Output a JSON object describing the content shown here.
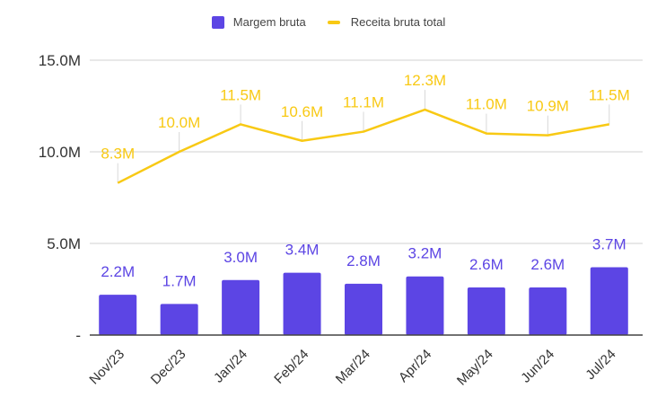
{
  "chart_data": {
    "type": "bar+line",
    "title": "",
    "xlabel": "",
    "ylabel": "",
    "categories": [
      "Nov/23",
      "Dec/23",
      "Jan/24",
      "Feb/24",
      "Mar/24",
      "Apr/24",
      "May/24",
      "Jun/24",
      "Jul/24"
    ],
    "series": [
      {
        "name": "Margem bruta",
        "type": "bar",
        "color": "#5c45e4",
        "values": [
          2.2,
          1.7,
          3.0,
          3.4,
          2.8,
          3.2,
          2.6,
          2.6,
          3.7
        ],
        "labels": [
          "2.2M",
          "1.7M",
          "3.0M",
          "3.4M",
          "2.8M",
          "3.2M",
          "2.6M",
          "2.6M",
          "3.7M"
        ]
      },
      {
        "name": "Receita bruta total",
        "type": "line",
        "color": "#f8c914",
        "values": [
          8.3,
          10.0,
          11.5,
          10.6,
          11.1,
          12.3,
          11.0,
          10.9,
          11.5
        ],
        "labels": [
          "8.3M",
          "10.0M",
          "11.5M",
          "10.6M",
          "11.1M",
          "12.3M",
          "11.0M",
          "10.9M",
          "11.5M"
        ]
      }
    ],
    "y_unit": "millions",
    "ylim": [
      0,
      15
    ],
    "yticks": [
      0,
      5,
      10,
      15
    ],
    "ytick_labels": [
      "-",
      "5.0M",
      "10.0M",
      "15.0M"
    ],
    "grid": true,
    "legend_position": "top-center",
    "colors": {
      "grid": "#e0e0e0",
      "axis": "#444444",
      "tick_text": "#333333"
    }
  }
}
